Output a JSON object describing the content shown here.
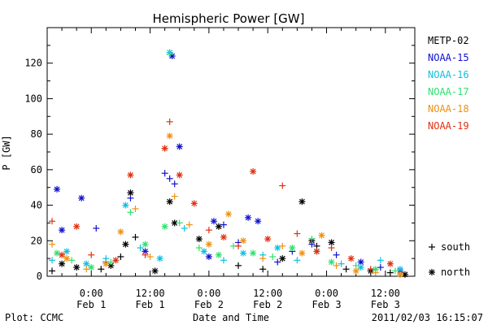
{
  "chart_data": {
    "type": "scatter",
    "title": "Hemispheric Power [GW]",
    "ylabel": "P [GW]",
    "xlabel": "Date and Time",
    "ylim": [
      0,
      140
    ],
    "yticks": [
      0,
      20,
      40,
      60,
      80,
      100,
      120
    ],
    "xlim": [
      -9,
      66
    ],
    "x_units": "hours since 2011/02/01 00:00",
    "xticks": [
      {
        "x": 0,
        "time": "0:00",
        "date": "Feb 1"
      },
      {
        "x": 12,
        "time": "12:00",
        "date": "Feb 1"
      },
      {
        "x": 24,
        "time": "0:00",
        "date": "Feb 2"
      },
      {
        "x": 36,
        "time": "12:00",
        "date": "Feb 2"
      },
      {
        "x": 48,
        "time": "0:00",
        "date": "Feb 3"
      },
      {
        "x": 60,
        "time": "12:00",
        "date": "Feb 3"
      }
    ],
    "grid": false,
    "legend_position": "right",
    "series": [
      {
        "name": "METP-02",
        "color": "#000000",
        "values": [
          [
            -8,
            3,
            "+"
          ],
          [
            -6,
            7,
            "*"
          ],
          [
            -3,
            5,
            "*"
          ],
          [
            2,
            4,
            "+"
          ],
          [
            4,
            6,
            "*"
          ],
          [
            6,
            11,
            "+"
          ],
          [
            7,
            18,
            "*"
          ],
          [
            8,
            47,
            "*"
          ],
          [
            9,
            22,
            "+"
          ],
          [
            13,
            3,
            "*"
          ],
          [
            16,
            42,
            "*"
          ],
          [
            17,
            30,
            "*"
          ],
          [
            22,
            21,
            "*"
          ],
          [
            26,
            28,
            "*"
          ],
          [
            30,
            6,
            "+"
          ],
          [
            35,
            4,
            "+"
          ],
          [
            39,
            10,
            "*"
          ],
          [
            43,
            42,
            "*"
          ],
          [
            45,
            20,
            "*"
          ],
          [
            46,
            17,
            "+"
          ],
          [
            49,
            19,
            "*"
          ],
          [
            52,
            4,
            "+"
          ],
          [
            57,
            3,
            "*"
          ],
          [
            61,
            2,
            "+"
          ],
          [
            64,
            1,
            "*"
          ]
        ]
      },
      {
        "name": "NOAA-15",
        "color": "#1010d0",
        "values": [
          [
            -7,
            49,
            "*"
          ],
          [
            -6,
            26,
            "*"
          ],
          [
            -2,
            44,
            "*"
          ],
          [
            1,
            27,
            "+"
          ],
          [
            3,
            8,
            "+"
          ],
          [
            8,
            44,
            "+"
          ],
          [
            11,
            14,
            "*"
          ],
          [
            15,
            58,
            "+"
          ],
          [
            16,
            55,
            "+"
          ],
          [
            16.5,
            124,
            "*"
          ],
          [
            17,
            52,
            "+"
          ],
          [
            18,
            73,
            "*"
          ],
          [
            24,
            11,
            "*"
          ],
          [
            25,
            31,
            "*"
          ],
          [
            27,
            29,
            "+"
          ],
          [
            30,
            19,
            "+"
          ],
          [
            32,
            33,
            "*"
          ],
          [
            34,
            31,
            "*"
          ],
          [
            38,
            8,
            "+"
          ],
          [
            41,
            14,
            "+"
          ],
          [
            45,
            18,
            "+"
          ],
          [
            50,
            12,
            "+"
          ],
          [
            55,
            8,
            "*"
          ],
          [
            59,
            5,
            "+"
          ],
          [
            63,
            3,
            "*"
          ]
        ]
      },
      {
        "name": "NOAA-16",
        "color": "#10c0e0",
        "values": [
          [
            -8,
            9,
            "+"
          ],
          [
            -5,
            14,
            "*"
          ],
          [
            -1,
            7,
            "*"
          ],
          [
            3,
            10,
            "+"
          ],
          [
            7,
            40,
            "*"
          ],
          [
            10,
            16,
            "+"
          ],
          [
            14,
            10,
            "*"
          ],
          [
            16,
            126,
            "*"
          ],
          [
            19,
            27,
            "+"
          ],
          [
            23,
            14,
            "*"
          ],
          [
            27,
            9,
            "+"
          ],
          [
            31,
            13,
            "*"
          ],
          [
            35,
            12,
            "+"
          ],
          [
            38,
            16,
            "*"
          ],
          [
            42,
            9,
            "+"
          ],
          [
            46,
            14,
            "*"
          ],
          [
            51,
            7,
            "+"
          ],
          [
            55,
            5,
            "*"
          ],
          [
            59,
            9,
            "+"
          ],
          [
            63,
            4,
            "*"
          ]
        ]
      },
      {
        "name": "NOAA-17",
        "color": "#30e070",
        "values": [
          [
            -7,
            13,
            "*"
          ],
          [
            -4,
            9,
            "+"
          ],
          [
            0,
            5,
            "*"
          ],
          [
            4,
            8,
            "+"
          ],
          [
            8,
            36,
            "+"
          ],
          [
            11,
            18,
            "*"
          ],
          [
            15,
            28,
            "*"
          ],
          [
            16,
            125,
            "+"
          ],
          [
            18,
            30,
            "+"
          ],
          [
            22,
            16,
            "+"
          ],
          [
            26,
            12,
            "*"
          ],
          [
            29,
            17,
            "+"
          ],
          [
            33,
            13,
            "*"
          ],
          [
            37,
            11,
            "+"
          ],
          [
            41,
            16,
            "*"
          ],
          [
            45,
            21,
            "+"
          ],
          [
            49,
            8,
            "*"
          ],
          [
            54,
            6,
            "+"
          ],
          [
            58,
            4,
            "*"
          ],
          [
            62,
            3,
            "+"
          ]
        ]
      },
      {
        "name": "NOAA-18",
        "color": "#f09010",
        "values": [
          [
            -8,
            18,
            "+"
          ],
          [
            -5,
            10,
            "*"
          ],
          [
            -1,
            4,
            "+"
          ],
          [
            3,
            7,
            "*"
          ],
          [
            6,
            25,
            "*"
          ],
          [
            9,
            38,
            "+"
          ],
          [
            12,
            11,
            "+"
          ],
          [
            15,
            72,
            "+"
          ],
          [
            16,
            79,
            "*"
          ],
          [
            17,
            45,
            "+"
          ],
          [
            20,
            29,
            "+"
          ],
          [
            24,
            18,
            "*"
          ],
          [
            28,
            35,
            "*"
          ],
          [
            31,
            20,
            "*"
          ],
          [
            35,
            10,
            "+"
          ],
          [
            39,
            17,
            "+"
          ],
          [
            43,
            13,
            "*"
          ],
          [
            47,
            23,
            "*"
          ],
          [
            50,
            6,
            "+"
          ],
          [
            54,
            3,
            "*"
          ],
          [
            58,
            2,
            "+"
          ],
          [
            63,
            1,
            "*"
          ]
        ]
      },
      {
        "name": "NOAA-19",
        "color": "#e03010",
        "values": [
          [
            -8,
            31,
            "+"
          ],
          [
            -6,
            12,
            "*"
          ],
          [
            -3,
            28,
            "*"
          ],
          [
            0,
            12,
            "+"
          ],
          [
            5,
            9,
            "*"
          ],
          [
            8,
            57,
            "*"
          ],
          [
            11,
            12,
            "+"
          ],
          [
            15,
            72,
            "*"
          ],
          [
            16,
            87,
            "+"
          ],
          [
            18,
            57,
            "*"
          ],
          [
            21,
            41,
            "*"
          ],
          [
            24,
            26,
            "+"
          ],
          [
            27,
            22,
            "*"
          ],
          [
            30,
            17,
            "+"
          ],
          [
            33,
            59,
            "*"
          ],
          [
            36,
            21,
            "*"
          ],
          [
            39,
            51,
            "+"
          ],
          [
            42,
            24,
            "+"
          ],
          [
            46,
            14,
            "*"
          ],
          [
            49,
            16,
            "+"
          ],
          [
            53,
            10,
            "*"
          ],
          [
            57,
            4,
            "+"
          ],
          [
            61,
            7,
            "*"
          ]
        ]
      }
    ],
    "marker_legend": [
      {
        "symbol": "+",
        "label": "south"
      },
      {
        "symbol": "*",
        "label": "north"
      }
    ]
  },
  "footer": {
    "left": "Plot: CCMC",
    "right": "2011/02/03 16:15:07"
  }
}
